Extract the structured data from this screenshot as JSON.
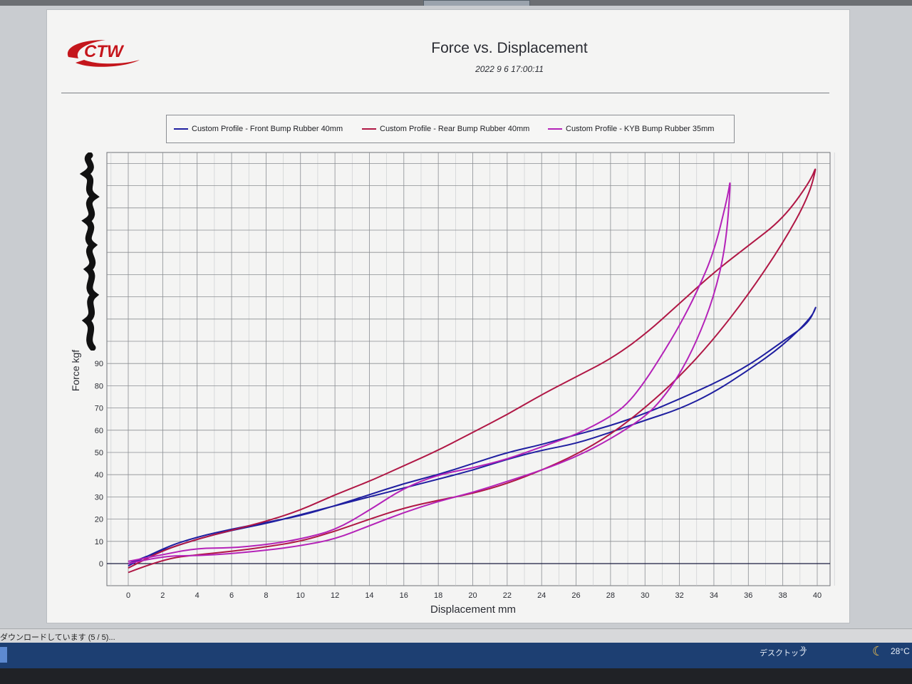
{
  "report": {
    "title": "Force vs. Displacement",
    "timestamp": "2022 9 6  17:00:11",
    "logo_text": "CTW"
  },
  "legend": [
    {
      "label": "Custom Profile - Front Bump Rubber 40mm",
      "color": "#1f1fa0"
    },
    {
      "label": "Custom Profile - Rear Bump Rubber 40mm",
      "color": "#b01745"
    },
    {
      "label": "Custom Profile - KYB Bump Rubber 35mm",
      "color": "#b422b8"
    }
  ],
  "status": {
    "download_text": "ダウンロードしています (5 / 5)..."
  },
  "taskbar": {
    "desktop_label": "デスクトップ",
    "chevron": "»",
    "temperature": "28°C",
    "weather_icon": "moon-icon"
  },
  "chart_data": {
    "type": "line",
    "title": "Force vs. Displacement",
    "xlabel": "Displacement mm",
    "ylabel": "Force kgf",
    "xlim": [
      -1,
      41
    ],
    "ylim": [
      -12,
      187
    ],
    "x_ticks": [
      0,
      2,
      4,
      6,
      8,
      10,
      12,
      14,
      16,
      18,
      20,
      22,
      24,
      26,
      28,
      30,
      32,
      34,
      36,
      38,
      40
    ],
    "x_tick_labels": [
      "0",
      "2",
      "4",
      "6",
      "8",
      "10",
      "12",
      "14",
      "16",
      "18",
      "20",
      "22",
      "24",
      "26",
      "28",
      "30",
      "32",
      "34",
      "36",
      "38",
      "40"
    ],
    "y_ticks": [
      0,
      10,
      20,
      30,
      40,
      50,
      60,
      70,
      80,
      90
    ],
    "y_tick_labels": [
      "0",
      "10",
      "20",
      "30",
      "40",
      "50",
      "60",
      "70",
      "80",
      "90"
    ],
    "grid": true,
    "legend_position": "top",
    "series": [
      {
        "name": "Custom Profile - Front Bump Rubber 40mm",
        "color": "#1f1fa0",
        "x": [
          0,
          2,
          4,
          6,
          8,
          10,
          12,
          14,
          16,
          18,
          20,
          22,
          24,
          26,
          28,
          30,
          32,
          34,
          36,
          38,
          39.5,
          40,
          39.7,
          38,
          36,
          34,
          32,
          30,
          28,
          26,
          24,
          22,
          20,
          18,
          16,
          14,
          12,
          10,
          8,
          6,
          4,
          2,
          0
        ],
        "y": [
          -1,
          7,
          12,
          15.5,
          18.5,
          21.5,
          26,
          31,
          36,
          40,
          45,
          50,
          53.5,
          58,
          62,
          67.5,
          74,
          81,
          89,
          100,
          108,
          117,
          111,
          98,
          87,
          77,
          69.5,
          64.5,
          59,
          54,
          51,
          47,
          42,
          38,
          34,
          30,
          26,
          22,
          18,
          15,
          11,
          6,
          0
        ]
      },
      {
        "name": "Custom Profile - Rear Bump Rubber 40mm",
        "color": "#b01745",
        "x": [
          0,
          2,
          4,
          6,
          8,
          10,
          12,
          14,
          16,
          18,
          20,
          22,
          24,
          26,
          28,
          30,
          32,
          34,
          36,
          38,
          39.5,
          40,
          39.6,
          38,
          36,
          34,
          32,
          30,
          28,
          26,
          24,
          22,
          20,
          18,
          16,
          14,
          12,
          10,
          8,
          6,
          4,
          2,
          0
        ],
        "y": [
          -4,
          2,
          4,
          5.5,
          7.5,
          10,
          14.5,
          20,
          25,
          28.5,
          31.5,
          36,
          42,
          49,
          58,
          70,
          84,
          101,
          121,
          144,
          165,
          180,
          172,
          155,
          143,
          131,
          117,
          103,
          92,
          84,
          76,
          67,
          59,
          51,
          44,
          37,
          31,
          24,
          19,
          15,
          11,
          6,
          -2
        ]
      },
      {
        "name": "Custom Profile - KYB Bump Rubber 35mm",
        "color": "#b422b8",
        "x": [
          0,
          2,
          4,
          6,
          8,
          10,
          12,
          14,
          16,
          18,
          20,
          22,
          24,
          26,
          28,
          30,
          31,
          32,
          33,
          34,
          34.7,
          35,
          34.8,
          34,
          33,
          32,
          31,
          30,
          29,
          28,
          26,
          24,
          22,
          20,
          18,
          16,
          14,
          12,
          10,
          8,
          6,
          4,
          2,
          0
        ],
        "y": [
          0,
          3.5,
          3.5,
          4.5,
          6,
          8,
          11,
          17,
          23,
          28,
          32,
          37,
          42,
          48,
          56,
          66,
          74,
          85,
          100,
          120,
          143,
          175,
          165,
          140,
          122,
          107,
          94,
          82,
          72,
          66,
          58,
          52.5,
          47,
          43,
          40,
          34,
          24,
          15,
          11,
          8.5,
          7,
          7,
          4,
          1
        ]
      }
    ]
  }
}
